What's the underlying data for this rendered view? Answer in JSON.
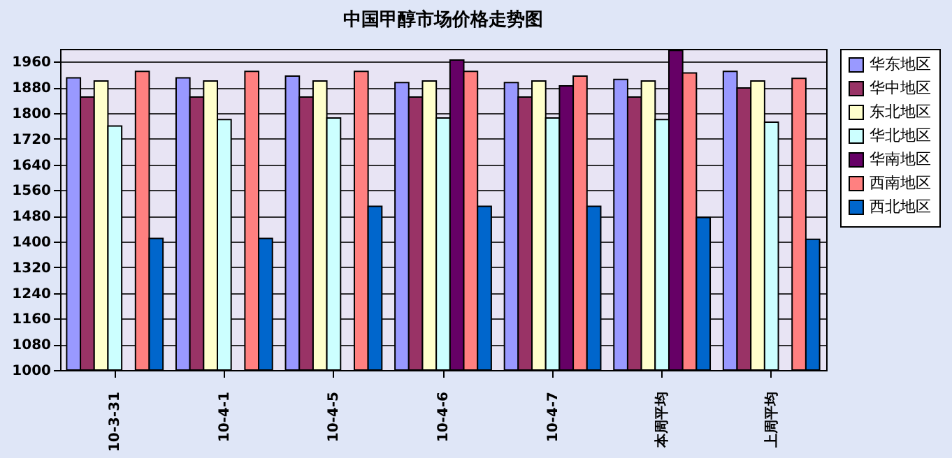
{
  "chart_data": {
    "type": "bar",
    "title": "中国甲醇市场价格走势图",
    "categories": [
      "10-3-31",
      "10-4-1",
      "10-4-5",
      "10-4-6",
      "10-4-7",
      "本周平均",
      "上周平均"
    ],
    "series": [
      {
        "name": "华东地区",
        "color": "#9999ff",
        "values": [
          1910,
          1910,
          1915,
          1895,
          1895,
          1905,
          1930
        ]
      },
      {
        "name": "华中地区",
        "color": "#993366",
        "values": [
          1850,
          1850,
          1850,
          1850,
          1850,
          1850,
          1878
        ]
      },
      {
        "name": "东北地区",
        "color": "#ffffcc",
        "values": [
          1900,
          1900,
          1900,
          1900,
          1900,
          1900,
          1900
        ]
      },
      {
        "name": "华北地区",
        "color": "#ccffff",
        "values": [
          1760,
          1780,
          1785,
          1785,
          1785,
          1780,
          1772
        ]
      },
      {
        "name": "华南地区",
        "color": "#660066",
        "values": [
          null,
          null,
          null,
          1965,
          1885,
          1995,
          null
        ]
      },
      {
        "name": "西南地区",
        "color": "#ff8080",
        "values": [
          1930,
          1930,
          1930,
          1930,
          1915,
          1925,
          1908
        ]
      },
      {
        "name": "西北地区",
        "color": "#0066cc",
        "values": [
          1410,
          1410,
          1510,
          1510,
          1510,
          1475,
          1407
        ]
      }
    ],
    "ylim": [
      1000,
      2000
    ],
    "yticks": [
      1000,
      1080,
      1160,
      1240,
      1320,
      1400,
      1480,
      1560,
      1640,
      1720,
      1800,
      1880,
      1960
    ],
    "grid": "y",
    "legend": "right"
  }
}
